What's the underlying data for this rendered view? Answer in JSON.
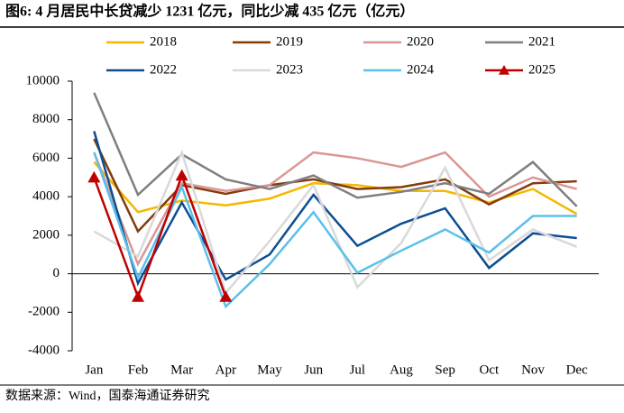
{
  "chart_data": {
    "type": "line",
    "title": "图6:  4 月居民中长贷减少 1231 亿元，同比少减 435 亿元（亿元）",
    "source": "数据来源：Wind，国泰海通证券研究",
    "categories": [
      "Jan",
      "Feb",
      "Mar",
      "Apr",
      "May",
      "Jun",
      "Jul",
      "Aug",
      "Sep",
      "Oct",
      "Nov",
      "Dec"
    ],
    "ylim": [
      -4000,
      10000
    ],
    "yticks": [
      -4000,
      -2000,
      0,
      2000,
      4000,
      6000,
      8000,
      10000
    ],
    "legend": "top",
    "series": [
      {
        "name": "2018",
        "color": "#f5b800",
        "values": [
          5800,
          3200,
          3800,
          3550,
          3900,
          4700,
          4600,
          4300,
          4300,
          3700,
          4400,
          3100
        ]
      },
      {
        "name": "2019",
        "color": "#843c0c",
        "values": [
          7000,
          2200,
          4600,
          4150,
          4600,
          4900,
          4400,
          4500,
          4900,
          3600,
          4700,
          4800
        ]
      },
      {
        "name": "2020",
        "color": "#d99694",
        "values": [
          6300,
          500,
          4700,
          4300,
          4600,
          6300,
          6000,
          5550,
          6300,
          4000,
          5000,
          4400
        ]
      },
      {
        "name": "2021",
        "color": "#7f7f7f",
        "values": [
          9400,
          4100,
          6200,
          4900,
          4400,
          5100,
          3950,
          4250,
          4700,
          4150,
          5800,
          3500
        ]
      },
      {
        "name": "2022",
        "color": "#0e4d92",
        "values": [
          7400,
          -500,
          3700,
          -300,
          1000,
          4100,
          1450,
          2600,
          3400,
          300,
          2100,
          1850
        ]
      },
      {
        "name": "2023",
        "color": "#d9d9d9",
        "values": [
          2200,
          900,
          6300,
          -1000,
          1700,
          4600,
          -700,
          1600,
          5500,
          700,
          2300,
          1400
        ]
      },
      {
        "name": "2024",
        "color": "#5bc0eb",
        "values": [
          6300,
          -200,
          4500,
          -1700,
          500,
          3200,
          50,
          1200,
          2300,
          1100,
          3000,
          3000
        ]
      },
      {
        "name": "2025",
        "color": "#c00000",
        "marker": "triangle",
        "values": [
          5000,
          -1200,
          5100,
          -1200,
          null,
          null,
          null,
          null,
          null,
          null,
          null,
          null
        ]
      }
    ]
  }
}
